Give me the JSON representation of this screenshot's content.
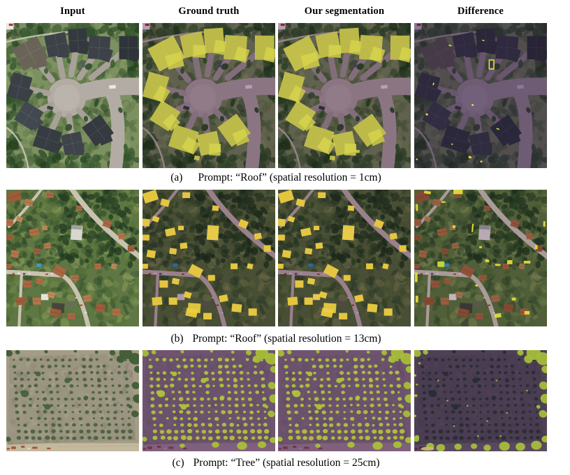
{
  "figure": {
    "column_headers": [
      "Input",
      "Ground truth",
      "Our segmentation",
      "Difference"
    ],
    "panel_modes": [
      "input",
      "ground-truth",
      "segmentation",
      "difference"
    ],
    "rows": [
      {
        "label": "(a)",
        "caption": "Prompt: “Roof” (spatial resolution = 1cm)",
        "prompt": "Roof",
        "spatial_resolution": "1cm",
        "scene": "suburb"
      },
      {
        "label": "(b)",
        "caption": "Prompt: “Roof” (spatial resolution = 13cm)",
        "prompt": "Roof",
        "spatial_resolution": "13cm",
        "scene": "town"
      },
      {
        "label": "(c)",
        "caption": "Prompt: “Tree” (spatial resolution = 25cm)",
        "prompt": "Tree",
        "spatial_resolution": "25cm",
        "scene": "orchard"
      }
    ],
    "colors": {
      "segmentation_highlight": "#d6d44c",
      "town_highlight": "#ecd042",
      "tree_highlight": "#b2c33e",
      "difference_speck": "#e6e93c",
      "overlay_tint": "#c6aecb",
      "town_overlay_tint": "#c2a8c8",
      "orchard_overlay_tint": "#ab8dbd",
      "difference_tint": "#a993b9",
      "town_difference_tint": "#d8cbdc",
      "orchard_difference_tint": "#8a76a6"
    }
  }
}
